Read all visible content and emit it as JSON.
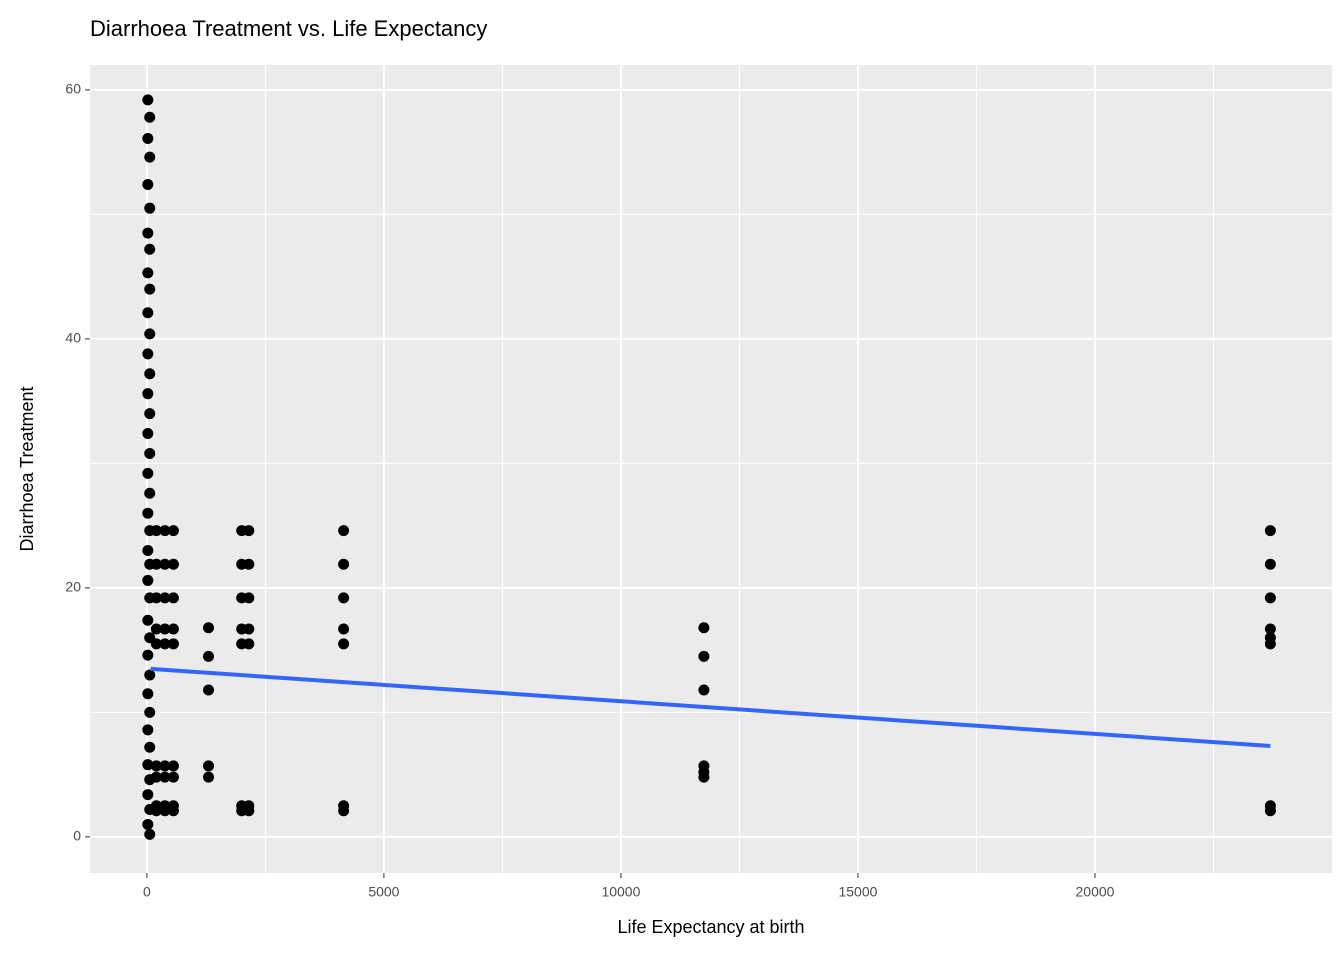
{
  "chart_data": {
    "type": "scatter",
    "title": "Diarrhoea Treatment vs. Life Expectancy",
    "x_label": "Life Expectancy at birth",
    "y_label": "Diarrhoea Treatment",
    "color": "#000000",
    "panel_color": "#ebebeb",
    "grid": true,
    "xlim": [
      -1200,
      25000
    ],
    "ylim": [
      -2.9,
      62
    ],
    "xticks": [
      0,
      5000,
      10000,
      15000,
      20000
    ],
    "yticks": [
      0,
      20,
      40,
      60
    ],
    "minor_xticks": [
      2500,
      7500,
      12500,
      17500,
      22500
    ],
    "minor_yticks": [
      10,
      30,
      50
    ],
    "x": [
      20,
      60,
      20,
      60,
      20,
      60,
      20,
      60,
      20,
      60,
      20,
      60,
      20,
      60,
      20,
      60,
      20,
      60,
      20,
      60,
      20,
      60,
      20,
      60,
      20,
      60,
      20,
      60,
      20,
      60,
      20,
      60,
      20,
      60,
      20,
      60,
      20,
      60,
      20,
      60,
      200,
      200,
      200,
      200,
      200,
      200,
      200,
      200,
      200,
      380,
      380,
      380,
      380,
      380,
      380,
      380,
      380,
      380,
      560,
      560,
      560,
      560,
      560,
      560,
      560,
      560,
      560,
      1300,
      1300,
      1300,
      1300,
      1300,
      2000,
      2000,
      2000,
      2000,
      2000,
      2000,
      2000,
      2150,
      2150,
      2150,
      2150,
      2150,
      2150,
      2150,
      4150,
      4150,
      4150,
      4150,
      4150,
      4150,
      4150,
      11750,
      11750,
      11750,
      11750,
      11750,
      11750,
      23700,
      23700,
      23700,
      23700,
      23700,
      23700,
      23700,
      23700
    ],
    "values": [
      59.2,
      57.8,
      56.1,
      54.6,
      52.4,
      50.5,
      48.5,
      47.2,
      45.3,
      44,
      42.1,
      40.4,
      38.8,
      37.2,
      35.6,
      34,
      32.4,
      30.8,
      29.2,
      27.6,
      26,
      24.6,
      23,
      21.9,
      20.6,
      19.2,
      17.4,
      16,
      14.6,
      13,
      11.5,
      10,
      8.6,
      7.2,
      5.8,
      4.6,
      3.4,
      2.2,
      1,
      0.2,
      24.6,
      21.9,
      19.2,
      16.7,
      15.5,
      5.7,
      4.8,
      2.5,
      2.1,
      24.6,
      21.9,
      19.2,
      16.7,
      15.5,
      5.7,
      4.8,
      2.5,
      2.1,
      24.6,
      21.9,
      19.2,
      16.7,
      15.5,
      5.7,
      4.8,
      2.5,
      2.1,
      16.8,
      14.5,
      11.8,
      5.7,
      4.8,
      24.6,
      21.9,
      19.2,
      16.7,
      15.5,
      2.5,
      2.1,
      24.6,
      21.9,
      19.2,
      16.7,
      15.5,
      2.5,
      2.1,
      24.6,
      21.9,
      19.2,
      16.7,
      15.5,
      2.5,
      2.1,
      16.8,
      14.5,
      11.8,
      5.7,
      5.2,
      4.8,
      24.6,
      21.9,
      19.2,
      16.7,
      16,
      15.5,
      2.5,
      2.1
    ],
    "trend": {
      "x": [
        80,
        23700
      ],
      "values": [
        13.5,
        7.3
      ],
      "color": "#3366ff"
    }
  }
}
